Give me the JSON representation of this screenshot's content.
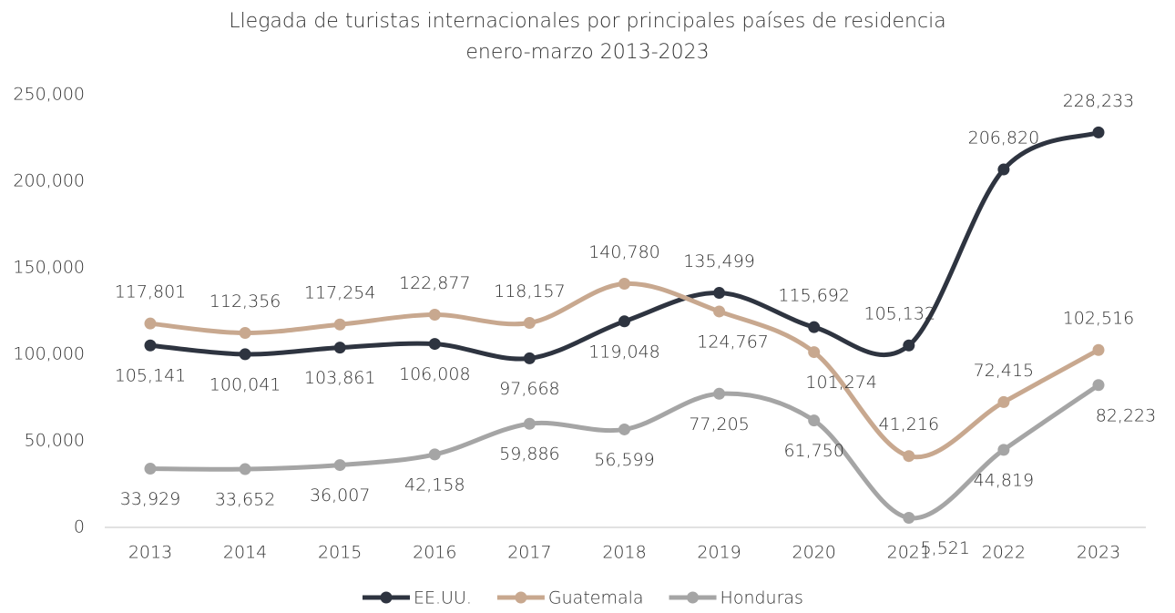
{
  "chart_data": {
    "type": "line",
    "title": "Llegada de turistas internacionales por principales países de residencia",
    "subtitle": "enero-marzo 2013-2023",
    "categories": [
      "2013",
      "2014",
      "2015",
      "2016",
      "2017",
      "2018",
      "2019",
      "2020",
      "2021",
      "2022",
      "2023"
    ],
    "series": [
      {
        "name": "EE.UU.",
        "color": "#2e3440",
        "values": [
          105141,
          100041,
          103861,
          106008,
          97668,
          119048,
          135499,
          115692,
          105132,
          206820,
          228233
        ],
        "value_labels": [
          "105,141",
          "100,041",
          "103,861",
          "106,008",
          "97,668",
          "119,048",
          "135,499",
          "115,692",
          "105,132",
          "206,820",
          "228,233"
        ]
      },
      {
        "name": "Guatemala",
        "color": "#c8a88f",
        "values": [
          117801,
          112356,
          117254,
          122877,
          118157,
          140780,
          124767,
          101274,
          41216,
          72415,
          102516
        ],
        "value_labels": [
          "117,801",
          "112,356",
          "117,254",
          "122,877",
          "118,157",
          "140,780",
          "124,767",
          "101,274",
          "41,216",
          "72,415",
          "102,516"
        ]
      },
      {
        "name": "Honduras",
        "color": "#a5a5a5",
        "values": [
          33929,
          33652,
          36007,
          42158,
          59886,
          56599,
          77205,
          61750,
          5521,
          44819,
          82223
        ],
        "value_labels": [
          "33,929",
          "33,652",
          "36,007",
          "42,158",
          "59,886",
          "56,599",
          "77,205",
          "61,750",
          "5,521",
          "44,819",
          "82,223"
        ]
      }
    ],
    "ylim": [
      0,
      250000
    ],
    "yticks": [
      0,
      {
        "value": 50000,
        "label": "50,000"
      },
      {
        "value": 100000,
        "label": "100,000"
      },
      {
        "value": 150000,
        "label": "150,000"
      },
      {
        "value": 200000,
        "label": "200,000"
      },
      {
        "value": 250000,
        "label": "250,000"
      }
    ],
    "legend": "bottom"
  }
}
